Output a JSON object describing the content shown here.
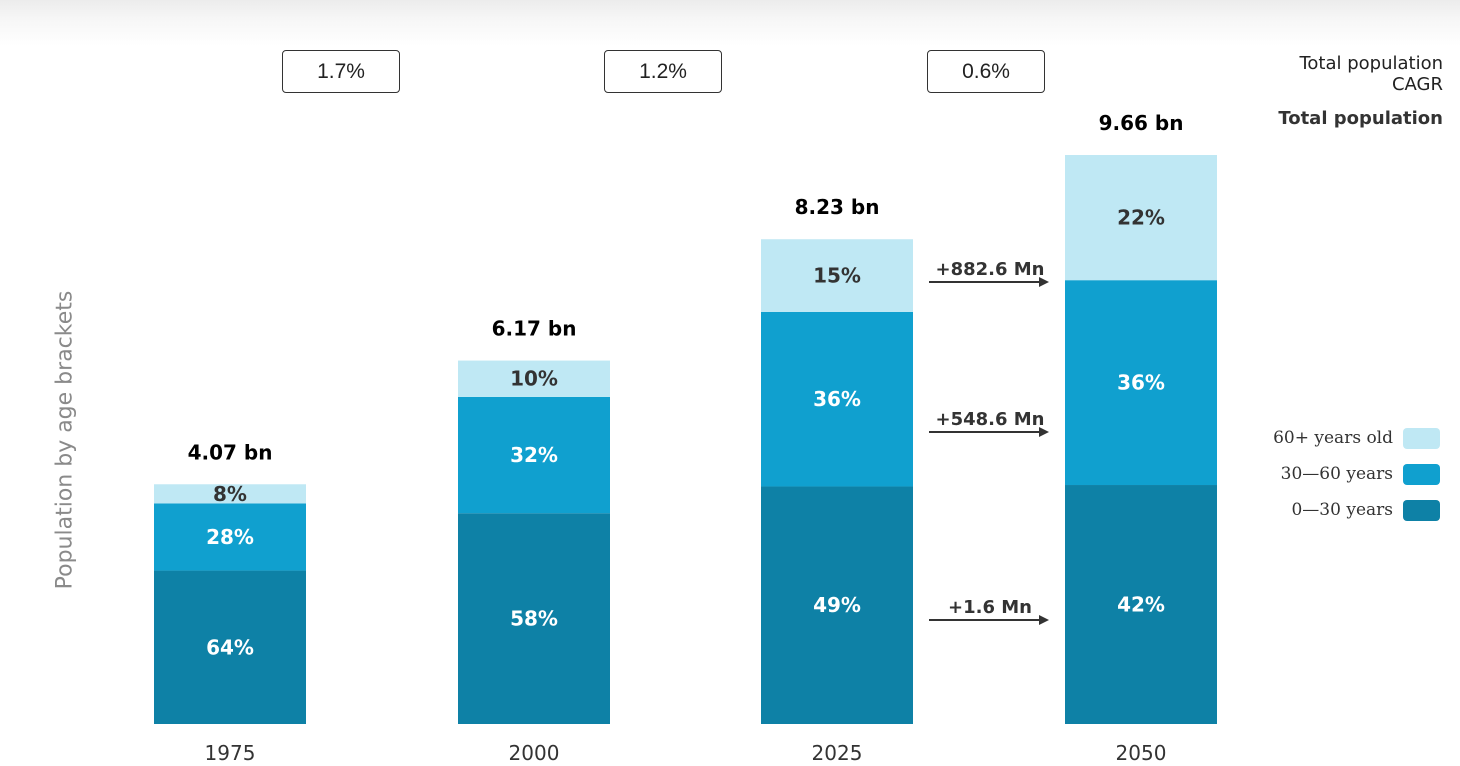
{
  "colors": {
    "age_0_30": "#0e81a6",
    "age_30_60": "#10a0cf",
    "age_60_plus": "#bfe8f4",
    "arrow": "#333333"
  },
  "header": {
    "cagr_label": "Total population\nCAGR",
    "total_label": "Total population",
    "cagr_values": [
      "1.7%",
      "1.2%",
      "0.6%"
    ]
  },
  "legend": {
    "items": [
      {
        "label": "60+ years old",
        "color_key": "age_60_plus"
      },
      {
        "label": "30—60 years",
        "color_key": "age_30_60"
      },
      {
        "label": "0—30 years",
        "color_key": "age_0_30"
      }
    ]
  },
  "chart_data": {
    "type": "bar",
    "stacked": true,
    "title": "",
    "ylabel": "Population by age brackets",
    "xlabel": "",
    "categories": [
      "1975",
      "2000",
      "2025",
      "2050"
    ],
    "totals_bn": [
      4.07,
      6.17,
      8.23,
      9.66
    ],
    "total_labels": [
      "4.07 bn",
      "6.17 bn",
      "8.23 bn",
      "9.66 bn"
    ],
    "ylim": [
      0,
      9.66
    ],
    "series": [
      {
        "name": "0—30 years",
        "color_key": "age_0_30",
        "values_pct": [
          64,
          58,
          49,
          42
        ],
        "labels": [
          "64%",
          "58%",
          "49%",
          "42%"
        ]
      },
      {
        "name": "30—60 years",
        "color_key": "age_30_60",
        "values_pct": [
          28,
          32,
          36,
          36
        ],
        "labels": [
          "28%",
          "32%",
          "36%",
          "36%"
        ]
      },
      {
        "name": "60+ years old",
        "color_key": "age_60_plus",
        "values_pct": [
          8,
          10,
          15,
          22
        ],
        "labels": [
          "8%",
          "10%",
          "15%",
          "22%"
        ]
      }
    ],
    "annotations": [
      {
        "text": "+882.6 Mn",
        "series": "60+ years old",
        "from": "2025",
        "to": "2050"
      },
      {
        "text": "+548.6 Mn",
        "series": "30—60 years",
        "from": "2025",
        "to": "2050"
      },
      {
        "text": "+1.6 Mn",
        "series": "0—30 years",
        "from": "2025",
        "to": "2050"
      }
    ],
    "grid": false,
    "legend_position": "right"
  }
}
